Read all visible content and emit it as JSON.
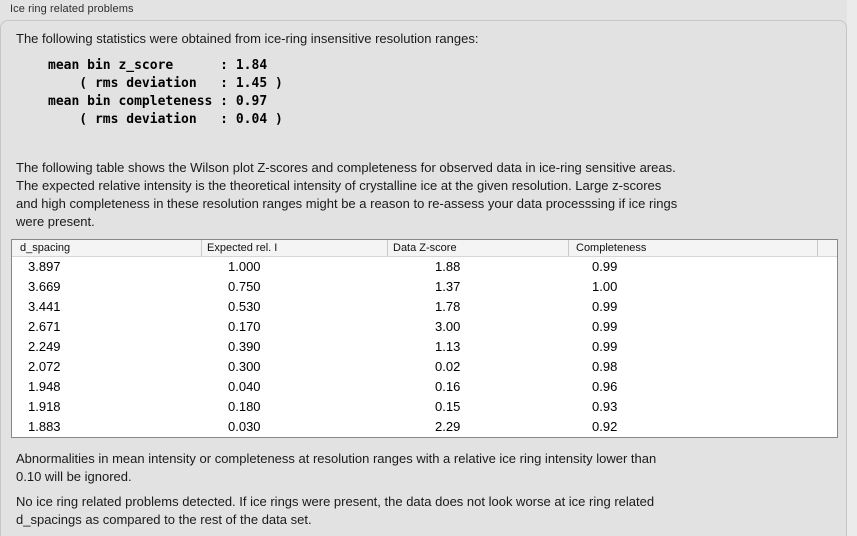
{
  "colors": {
    "page-bg": "#e3e3e3",
    "strip-bg": "#ebebeb",
    "box-bg": "#e2e2e2",
    "box-border": "#c6c6c6",
    "table-border": "#878787",
    "table-bg": "#ffffff",
    "header-bg": "#f4f4f4",
    "header-line": "#c9c9c9",
    "header-underline": "#d6d6d6",
    "text": "#1a1a1a"
  },
  "panel": {
    "title": "Ice ring related problems"
  },
  "sections": {
    "intro": "The following statistics were obtained from ice-ring insensitive resolution ranges:",
    "stats_block": "mean bin z_score      : 1.84\n    ( rms deviation   : 1.45 )\nmean bin completeness : 0.97\n    ( rms deviation   : 0.04 )",
    "table_desc": "The following table shows the Wilson plot Z-scores and completeness for observed data in ice-ring sensitive areas.\nThe expected relative intensity is the theoretical intensity of crystalline ice at the given resolution. Large z-scores\nand high completeness in these resolution ranges might be a reason to re-assess your data processsing if ice rings\nwere present.",
    "note": "Abnormalities in mean intensity or completeness at resolution ranges with a relative ice ring intensity lower than\n0.10 will be ignored.",
    "conclusion": "No ice ring related problems detected. If ice rings were present, the data does not look worse at ice ring related\nd_spacings as compared to the rest of the data set."
  },
  "table": {
    "headers": [
      "d_spacing",
      "Expected rel. I",
      "Data Z-score",
      "Completeness",
      ""
    ],
    "rows": [
      [
        "3.897",
        "1.000",
        "1.88",
        "0.99"
      ],
      [
        "3.669",
        "0.750",
        "1.37",
        "1.00"
      ],
      [
        "3.441",
        "0.530",
        "1.78",
        "0.99"
      ],
      [
        "2.671",
        "0.170",
        "3.00",
        "0.99"
      ],
      [
        "2.249",
        "0.390",
        "1.13",
        "0.99"
      ],
      [
        "2.072",
        "0.300",
        "0.02",
        "0.98"
      ],
      [
        "1.948",
        "0.040",
        "0.16",
        "0.96"
      ],
      [
        "1.918",
        "0.180",
        "0.15",
        "0.93"
      ],
      [
        "1.883",
        "0.030",
        "2.29",
        "0.92"
      ]
    ]
  }
}
